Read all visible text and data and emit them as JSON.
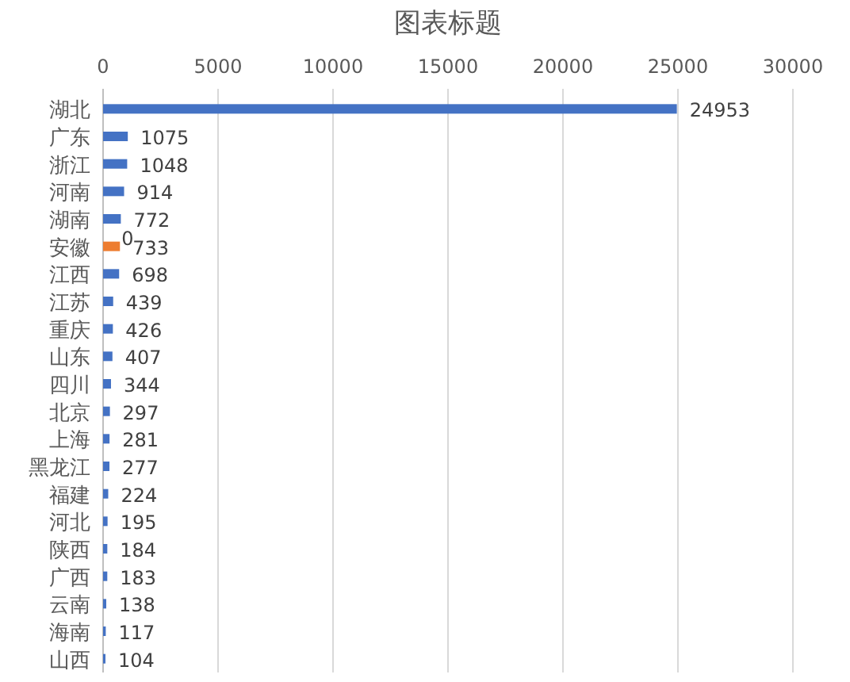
{
  "chart_data": {
    "type": "bar",
    "orientation": "horizontal",
    "title": "图表标题",
    "categories": [
      "湖北",
      "广东",
      "浙江",
      "河南",
      "湖南",
      "安徽",
      "江西",
      "江苏",
      "重庆",
      "山东",
      "四川",
      "北京",
      "上海",
      "黑龙江",
      "福建",
      "河北",
      "陕西",
      "广西",
      "云南",
      "海南",
      "山西"
    ],
    "values": [
      24953,
      1075,
      1048,
      914,
      772,
      733,
      698,
      439,
      426,
      407,
      344,
      297,
      281,
      277,
      224,
      195,
      184,
      183,
      138,
      117,
      104
    ],
    "colors": [
      "#4472c4",
      "#4472c4",
      "#4472c4",
      "#4472c4",
      "#4472c4",
      "#ed7d31",
      "#4472c4",
      "#4472c4",
      "#4472c4",
      "#4472c4",
      "#4472c4",
      "#4472c4",
      "#4472c4",
      "#4472c4",
      "#4472c4",
      "#4472c4",
      "#4472c4",
      "#4472c4",
      "#4472c4",
      "#4472c4",
      "#4472c4"
    ],
    "xlim": [
      0,
      30000
    ],
    "xticks": [
      0,
      5000,
      10000,
      15000,
      20000,
      25000,
      30000
    ],
    "grid": "x",
    "data_labels": true,
    "annotations": [
      "0"
    ]
  }
}
